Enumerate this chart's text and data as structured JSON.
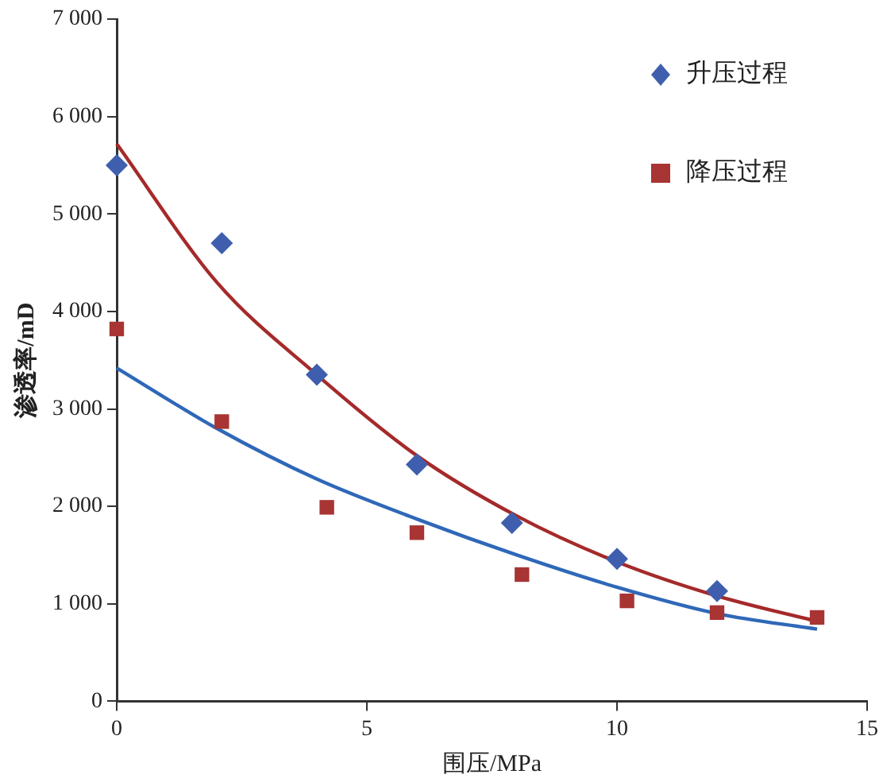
{
  "chart_data": {
    "type": "scatter",
    "xlabel": "围压/MPa",
    "ylabel": "渗透率/mD",
    "xlim": [
      0,
      15
    ],
    "xticks": [
      0,
      5,
      10,
      15
    ],
    "ylim": [
      0,
      7000
    ],
    "yticks": [
      {
        "value": 0,
        "label": "0"
      },
      {
        "value": 1000,
        "label": "1 000"
      },
      {
        "value": 2000,
        "label": "2 000"
      },
      {
        "value": 3000,
        "label": "3 000"
      },
      {
        "value": 4000,
        "label": "4 000"
      },
      {
        "value": 5000,
        "label": "5 000"
      },
      {
        "value": 6000,
        "label": "6 000"
      },
      {
        "value": 7000,
        "label": "7 000"
      }
    ],
    "grid": false,
    "legend": "top right",
    "series": [
      {
        "name": "升压过程",
        "type": "scatter",
        "marker": "diamond",
        "color": "#3f5fae",
        "x": [
          0,
          2.1,
          4,
          6,
          7.9,
          10,
          12
        ],
        "values": [
          5500,
          4700,
          3350,
          2430,
          1830,
          1460,
          1130
        ]
      },
      {
        "name": "降压过程",
        "type": "scatter",
        "marker": "square",
        "color": "#a83434",
        "x": [
          0,
          2.1,
          4.2,
          6,
          8.1,
          10.2,
          12,
          14
        ],
        "values": [
          3820,
          2870,
          1990,
          1730,
          1300,
          1030,
          910,
          860
        ]
      },
      {
        "type": "line",
        "marker": "none",
        "line_style": "solid",
        "color": "#a52a2a",
        "x": [
          0,
          2,
          4,
          6,
          8,
          10,
          12,
          14
        ],
        "values": [
          5720,
          4300,
          3350,
          2520,
          1900,
          1430,
          1080,
          820
        ]
      },
      {
        "type": "line",
        "marker": "none",
        "line_style": "solid",
        "color": "#2f68b8",
        "x": [
          0,
          2,
          4,
          6,
          8,
          10,
          12,
          14
        ],
        "values": [
          3420,
          2800,
          2280,
          1870,
          1500,
          1170,
          900,
          740
        ]
      }
    ]
  }
}
